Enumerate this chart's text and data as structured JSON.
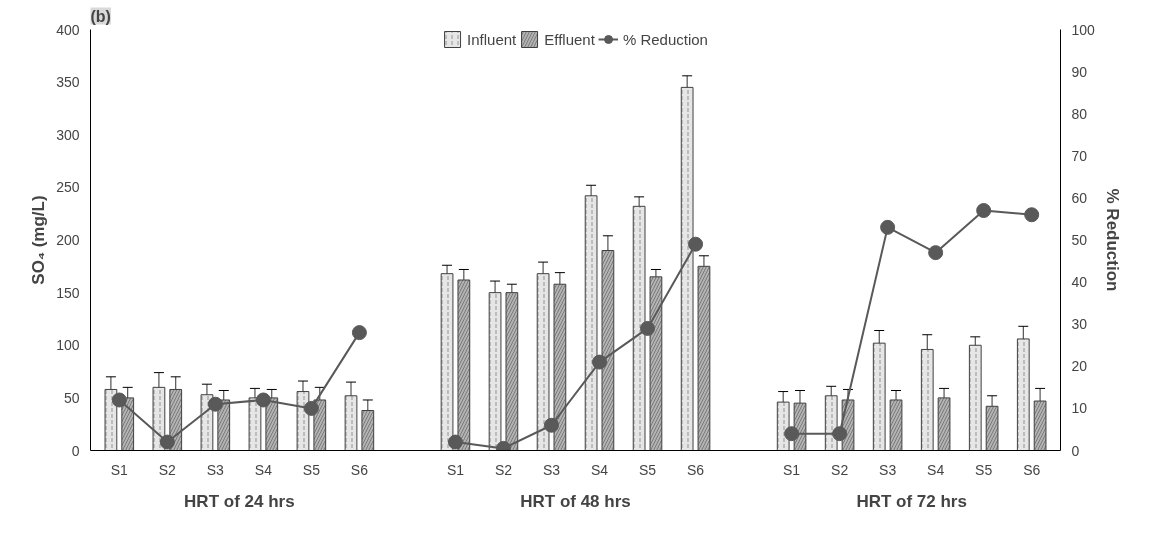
{
  "chart_data": {
    "type": "bar",
    "title": "(b)",
    "ylabel": "SO₄ (mg/L)",
    "y2label": "% Reduction",
    "categories": [
      "S1",
      "S2",
      "S3",
      "S4",
      "S5",
      "S6",
      null,
      "S1",
      "S2",
      "S3",
      "S4",
      "S5",
      "S6",
      null,
      "S1",
      "S2",
      "S3",
      "S4",
      "S5",
      "S6"
    ],
    "series": [
      {
        "name": "Influent",
        "color": "#e6e6e6",
        "values": [
          58,
          60,
          53,
          50,
          56,
          52,
          null,
          168,
          150,
          168,
          242,
          232,
          345,
          null,
          46,
          52,
          102,
          96,
          100,
          106
        ],
        "errors": [
          12,
          14,
          10,
          9,
          10,
          13,
          null,
          8,
          11,
          11,
          10,
          9,
          11,
          null,
          10,
          9,
          12,
          14,
          8,
          12
        ]
      },
      {
        "name": "Effluent",
        "color": "#b3b3b3",
        "values": [
          50,
          58,
          48,
          50,
          48,
          38,
          null,
          162,
          150,
          158,
          190,
          165,
          175,
          null,
          45,
          48,
          48,
          50,
          42,
          47
        ],
        "errors": [
          10,
          12,
          9,
          8,
          12,
          10,
          null,
          10,
          8,
          11,
          14,
          7,
          10,
          null,
          12,
          10,
          9,
          9,
          10,
          12
        ]
      },
      {
        "name": "% Reduction",
        "type": "line",
        "axis": "y2",
        "color": "#595959",
        "marker": "circle",
        "values": [
          12,
          2,
          11,
          12,
          10,
          28,
          null,
          2,
          0.5,
          6,
          21,
          29,
          49,
          null,
          4,
          4,
          53,
          47,
          57,
          56
        ]
      }
    ],
    "ylim": [
      0,
      400
    ],
    "yticks": [
      0,
      50,
      100,
      150,
      200,
      250,
      300,
      350,
      400
    ],
    "y2lim": [
      0,
      100
    ],
    "y2ticks": [
      0,
      10,
      20,
      30,
      40,
      50,
      60,
      70,
      80,
      90,
      100
    ],
    "annotations": [
      "HRT of 24 hrs",
      "HRT of 48 hrs",
      "HRT of 72 hrs"
    ],
    "grid": false,
    "legend": "top"
  }
}
